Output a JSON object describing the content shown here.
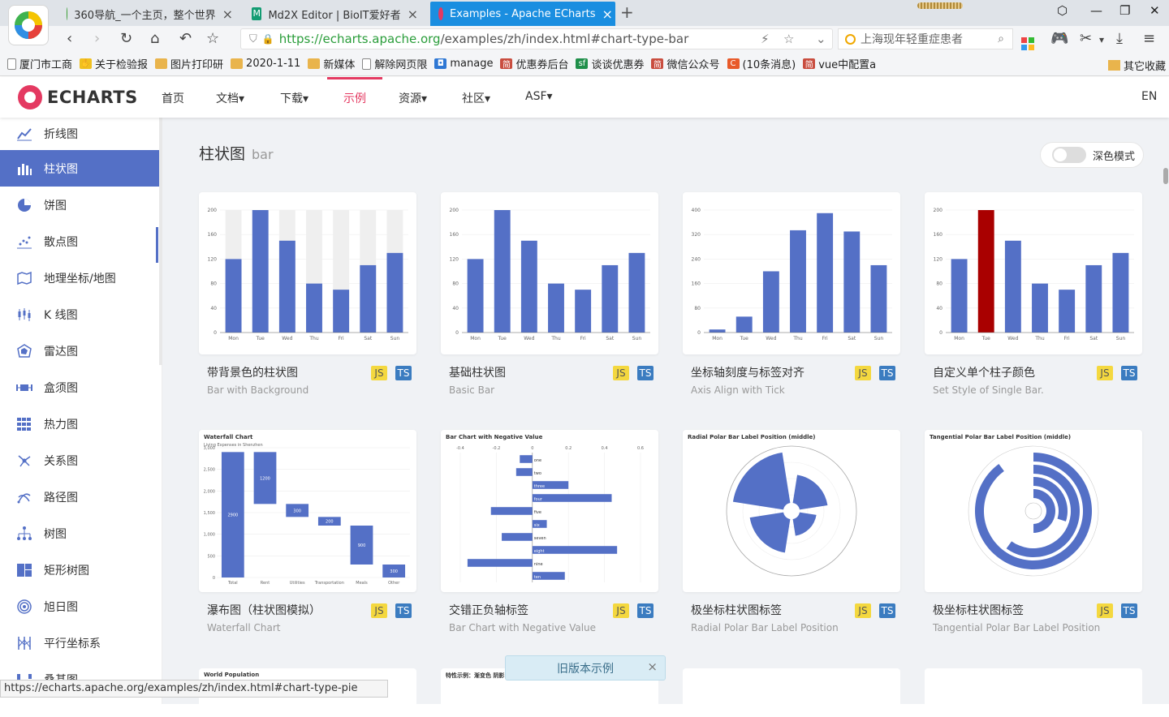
{
  "browser": {
    "tabs": [
      {
        "label": "360导航_一个主页，整个世界"
      },
      {
        "label": "Md2X Editor | BioIT爱好者"
      },
      {
        "label": "Examples - Apache ECharts"
      }
    ],
    "url": {
      "host": "https://echarts.apache.org",
      "path": "/examples/zh/index.html#chart-type-bar"
    },
    "search_placeholder": "上海现年轻重症患者",
    "bookmarks": [
      {
        "label": "厦门市工商",
        "icon": "doc"
      },
      {
        "label": "关于检验报",
        "icon": "hand"
      },
      {
        "label": "图片打印研",
        "icon": "folder"
      },
      {
        "label": "2020-1-11",
        "icon": "folder"
      },
      {
        "label": "新媒体",
        "icon": "folder"
      },
      {
        "label": "解除网页限",
        "icon": "doc"
      },
      {
        "label": "manage",
        "icon": "blue"
      },
      {
        "label": "优惠券后台",
        "icon": "red",
        "glyph": "简"
      },
      {
        "label": "谈谈优惠券",
        "icon": "green",
        "glyph": "sf"
      },
      {
        "label": "微信公众号",
        "icon": "red",
        "glyph": "简"
      },
      {
        "label": "(10条消息)",
        "icon": "orange",
        "glyph": "C"
      },
      {
        "label": "vue中配置a",
        "icon": "red",
        "glyph": "简"
      }
    ],
    "other_bookmarks": "其它收藏",
    "status_url": "https://echarts.apache.org/examples/zh/index.html#chart-type-pie"
  },
  "site": {
    "logo": "ECHARTS",
    "nav": [
      "首页",
      "文档▾",
      "下载▾",
      "示例",
      "资源▾",
      "社区▾",
      "ASF▾"
    ],
    "lang": "EN"
  },
  "sidebar": {
    "items": [
      {
        "label": "折线图",
        "icon": "line-chart-icon"
      },
      {
        "label": "柱状图",
        "icon": "bar-chart-icon",
        "active": true
      },
      {
        "label": "饼图",
        "icon": "pie-chart-icon"
      },
      {
        "label": "散点图",
        "icon": "scatter-chart-icon"
      },
      {
        "label": "地理坐标/地图",
        "icon": "map-icon"
      },
      {
        "label": "K 线图",
        "icon": "candlestick-icon"
      },
      {
        "label": "雷达图",
        "icon": "radar-icon"
      },
      {
        "label": "盒须图",
        "icon": "boxplot-icon"
      },
      {
        "label": "热力图",
        "icon": "heatmap-icon"
      },
      {
        "label": "关系图",
        "icon": "graph-icon"
      },
      {
        "label": "路径图",
        "icon": "lines-icon"
      },
      {
        "label": "树图",
        "icon": "tree-icon"
      },
      {
        "label": "矩形树图",
        "icon": "treemap-icon"
      },
      {
        "label": "旭日图",
        "icon": "sunburst-icon"
      },
      {
        "label": "平行坐标系",
        "icon": "parallel-icon"
      },
      {
        "label": "桑基图",
        "icon": "sankey-icon"
      }
    ]
  },
  "main": {
    "title": "柱状图",
    "title_en": "bar",
    "dark_mode_label": "深色模式",
    "badge_js": "JS",
    "badge_ts": "TS",
    "old_version": "旧版本示例",
    "cards": [
      {
        "title": "带背景色的柱状图",
        "subtitle": "Bar with Background"
      },
      {
        "title": "基础柱状图",
        "subtitle": "Basic Bar"
      },
      {
        "title": "坐标轴刻度与标签对齐",
        "subtitle": "Axis Align with Tick"
      },
      {
        "title": "自定义单个柱子颜色",
        "subtitle": "Set Style of Single Bar."
      },
      {
        "title": "瀑布图（柱状图模拟）",
        "subtitle": "Waterfall Chart"
      },
      {
        "title": "交错正负轴标签",
        "subtitle": "Bar Chart with Negative Value"
      },
      {
        "title": "极坐标柱状图标签",
        "subtitle": "Radial Polar Bar Label Position"
      },
      {
        "title": "极坐标柱状图标签",
        "subtitle": "Tangential Polar Bar Label Position"
      }
    ]
  },
  "chart_data": [
    {
      "type": "bar",
      "categories": [
        "Mon",
        "Tue",
        "Wed",
        "Thu",
        "Fri",
        "Sat",
        "Sun"
      ],
      "values": [
        120,
        200,
        150,
        80,
        70,
        110,
        130
      ],
      "ylim": [
        0,
        200
      ],
      "background_bars": true
    },
    {
      "type": "bar",
      "categories": [
        "Mon",
        "Tue",
        "Wed",
        "Thu",
        "Fri",
        "Sat",
        "Sun"
      ],
      "values": [
        120,
        200,
        150,
        80,
        70,
        110,
        130
      ],
      "ylim": [
        0,
        200
      ]
    },
    {
      "type": "bar",
      "categories": [
        "Mon",
        "Tue",
        "Wed",
        "Thu",
        "Fri",
        "Sat",
        "Sun"
      ],
      "values": [
        10,
        52,
        200,
        334,
        390,
        330,
        220
      ],
      "ylim": [
        0,
        400
      ]
    },
    {
      "type": "bar",
      "categories": [
        "Mon",
        "Tue",
        "Wed",
        "Thu",
        "Fri",
        "Sat",
        "Sun"
      ],
      "values": [
        120,
        200,
        150,
        80,
        70,
        110,
        130
      ],
      "ylim": [
        0,
        200
      ],
      "highlight_index": 1,
      "highlight_color": "#a90000"
    },
    {
      "type": "bar",
      "title": "Waterfall Chart",
      "subtitle": "Living Expenses in Shenzhen",
      "categories": [
        "Total",
        "Rent",
        "Utilities",
        "Transportation",
        "Meals",
        "Other"
      ],
      "values": [
        2900,
        1200,
        300,
        200,
        900,
        300
      ],
      "base": [
        0,
        1700,
        1400,
        1200,
        300,
        0
      ],
      "ylim": [
        0,
        3000
      ]
    },
    {
      "type": "bar",
      "title": "Bar Chart with Negative Value",
      "categories": [
        "one",
        "two",
        "three",
        "four",
        "five",
        "six",
        "seven",
        "eight",
        "nine",
        "ten"
      ],
      "values": [
        -0.07,
        -0.09,
        0.2,
        0.44,
        -0.23,
        0.08,
        -0.17,
        0.47,
        -0.36,
        0.18
      ],
      "xlim": [
        -0.4,
        0.6
      ]
    },
    {
      "type": "bar",
      "title": "Radial Polar Bar Label Position (middle)",
      "values": [
        2,
        1.2,
        2.4,
        3.6
      ]
    },
    {
      "type": "bar",
      "title": "Tangential Polar Bar Label Position (middle)",
      "values": [
        2,
        1.2,
        2.4,
        3.6
      ]
    }
  ],
  "colors": {
    "accent": "#5470c6",
    "brand": "#e43961"
  }
}
